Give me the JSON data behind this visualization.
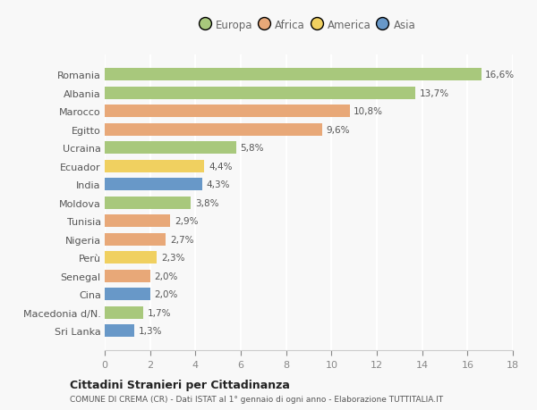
{
  "countries": [
    "Romania",
    "Albania",
    "Marocco",
    "Egitto",
    "Ucraina",
    "Ecuador",
    "India",
    "Moldova",
    "Tunisia",
    "Nigeria",
    "Perù",
    "Senegal",
    "Cina",
    "Macedonia d/N.",
    "Sri Lanka"
  ],
  "values": [
    16.6,
    13.7,
    10.8,
    9.6,
    5.8,
    4.4,
    4.3,
    3.8,
    2.9,
    2.7,
    2.3,
    2.0,
    2.0,
    1.7,
    1.3
  ],
  "labels": [
    "16,6%",
    "13,7%",
    "10,8%",
    "9,6%",
    "5,8%",
    "4,4%",
    "4,3%",
    "3,8%",
    "2,9%",
    "2,7%",
    "2,3%",
    "2,0%",
    "2,0%",
    "1,7%",
    "1,3%"
  ],
  "continents": [
    "Europa",
    "Europa",
    "Africa",
    "Africa",
    "Europa",
    "America",
    "Asia",
    "Europa",
    "Africa",
    "Africa",
    "America",
    "Africa",
    "Asia",
    "Europa",
    "Asia"
  ],
  "continent_colors": {
    "Europa": "#a8c87c",
    "Africa": "#e8a878",
    "America": "#f0d060",
    "Asia": "#6898c8"
  },
  "legend_items": [
    "Europa",
    "Africa",
    "America",
    "Asia"
  ],
  "legend_colors": [
    "#a8c87c",
    "#e8a878",
    "#f0d060",
    "#6898c8"
  ],
  "xlim": [
    0,
    18
  ],
  "xticks": [
    0,
    2,
    4,
    6,
    8,
    10,
    12,
    14,
    16,
    18
  ],
  "title1": "Cittadini Stranieri per Cittadinanza",
  "title2": "COMUNE DI CREMA (CR) - Dati ISTAT al 1° gennaio di ogni anno - Elaborazione TUTTITALIA.IT",
  "background_color": "#f8f8f8",
  "grid_color": "#ffffff",
  "bar_height": 0.68,
  "label_fontsize": 7.5,
  "ytick_fontsize": 8.0,
  "xtick_fontsize": 8.0
}
